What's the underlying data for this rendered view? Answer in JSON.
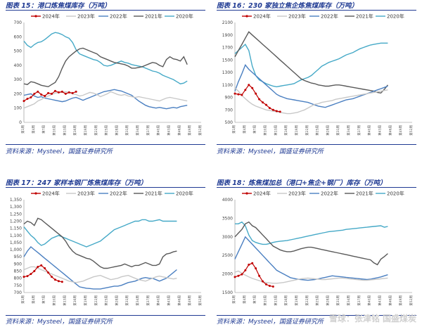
{
  "colors": {
    "y2024": "#c00000",
    "y2023": "#c8c8c8",
    "y2022": "#4a7fc1",
    "y2021": "#595959",
    "y2020": "#45a9c7",
    "title": "#1f3a93"
  },
  "watermark": "雪球：张津铭 国盛煤炭",
  "chart_data": [
    {
      "type": "line",
      "title": "图表 15：港口炼焦煤库存（万吨）",
      "source": "资料来源：Mysteel，国盛证券研究所",
      "ylim": [
        0,
        700
      ],
      "yticks": [
        "0",
        "100",
        "200",
        "300",
        "400",
        "500",
        "600",
        "700"
      ],
      "legend": [
        "2024年",
        "2023年",
        "2022年",
        "2021年",
        "2020年"
      ],
      "series": [
        {
          "name": "2024年",
          "values": [
            150,
            165,
            175,
            200,
            215,
            195,
            185,
            205,
            200,
            220,
            210,
            215,
            200,
            210,
            205,
            215
          ]
        },
        {
          "name": "2023年",
          "values": [
            100,
            110,
            120,
            130,
            150,
            160,
            175,
            185,
            195,
            205,
            210,
            212,
            215,
            210,
            200,
            195,
            185,
            190,
            200,
            210,
            205,
            195,
            180,
            190,
            200,
            215,
            205,
            195,
            190,
            195,
            185,
            180,
            175,
            180,
            175,
            170,
            165,
            160,
            155,
            150,
            160,
            170,
            175,
            170,
            165,
            160,
            155,
            150
          ]
        },
        {
          "name": "2022年",
          "values": [
            190,
            195,
            200,
            185,
            175,
            180,
            170,
            165,
            160,
            155,
            150,
            145,
            150,
            160,
            170,
            175,
            165,
            155,
            165,
            175,
            185,
            195,
            205,
            215,
            220,
            225,
            230,
            225,
            220,
            210,
            200,
            190,
            170,
            150,
            135,
            120,
            110,
            105,
            100,
            105,
            100,
            95,
            100,
            105,
            100,
            110,
            115,
            120
          ]
        },
        {
          "name": "2021年",
          "values": [
            270,
            265,
            285,
            280,
            270,
            260,
            255,
            250,
            265,
            280,
            320,
            380,
            430,
            460,
            480,
            500,
            515,
            520,
            510,
            500,
            490,
            480,
            460,
            450,
            440,
            430,
            420,
            415,
            410,
            405,
            395,
            380,
            380,
            385,
            390,
            400,
            410,
            420,
            415,
            400,
            390,
            440,
            460,
            445,
            440,
            430,
            460,
            405
          ]
        },
        {
          "name": "2020年",
          "values": [
            570,
            540,
            525,
            545,
            560,
            565,
            580,
            600,
            620,
            630,
            625,
            615,
            600,
            590,
            560,
            510,
            480,
            470,
            460,
            450,
            440,
            435,
            420,
            400,
            395,
            400,
            410,
            420,
            430,
            420,
            415,
            405,
            400,
            395,
            390,
            380,
            370,
            360,
            355,
            345,
            330,
            320,
            310,
            300,
            285,
            270,
            275,
            290
          ]
        }
      ]
    },
    {
      "type": "line",
      "title": "图表 16：230 家独立焦企炼焦煤库存（万吨）",
      "source": "资料来源：Mysteel，国盛证券研究所",
      "ylim": [
        500,
        2100
      ],
      "yticks": [
        "500",
        "700",
        "900",
        "1100",
        "1300",
        "1500",
        "1700",
        "1900",
        "2100"
      ],
      "legend": [
        "2024年",
        "2023年",
        "2022年",
        "2021年",
        "2020年"
      ],
      "series": [
        {
          "name": "2024年",
          "values": [
            960,
            950,
            940,
            1020,
            1100,
            1050,
            960,
            870,
            820,
            780,
            730,
            700,
            680,
            670
          ]
        },
        {
          "name": "2023年",
          "values": [
            1050,
            1000,
            930,
            880,
            830,
            790,
            760,
            740,
            720,
            700,
            690,
            680,
            670,
            660,
            650,
            640,
            640,
            650,
            660,
            680,
            700,
            730,
            760,
            790,
            800,
            820,
            830,
            840,
            850,
            870,
            880,
            890,
            900,
            910,
            920,
            930,
            940,
            950,
            960,
            970,
            980,
            990,
            1000,
            1010,
            1020
          ]
        },
        {
          "name": "2022年",
          "values": [
            1000,
            1150,
            1280,
            1420,
            1350,
            1300,
            1250,
            1200,
            1150,
            1100,
            1050,
            1000,
            950,
            920,
            900,
            880,
            870,
            860,
            850,
            840,
            830,
            820,
            800,
            780,
            760,
            750,
            740,
            760,
            780,
            800,
            820,
            840,
            860,
            870,
            880,
            900,
            920,
            940,
            960,
            980,
            1000,
            1020,
            1040,
            1060,
            1080
          ]
        },
        {
          "name": "2021年",
          "values": [
            1550,
            1650,
            1750,
            1850,
            1950,
            1900,
            1850,
            1800,
            1750,
            1700,
            1650,
            1600,
            1550,
            1500,
            1450,
            1400,
            1350,
            1300,
            1250,
            1200,
            1170,
            1150,
            1130,
            1120,
            1100,
            1090,
            1080,
            1080,
            1090,
            1100,
            1100,
            1090,
            1080,
            1070,
            1060,
            1050,
            1040,
            1030,
            1020,
            1010,
            1000,
            980,
            970,
            1030,
            1100
          ]
        },
        {
          "name": "2020年",
          "values": [
            1600,
            1650,
            1700,
            1750,
            1650,
            1400,
            1250,
            1180,
            1150,
            1120,
            1100,
            1080,
            1070,
            1080,
            1090,
            1100,
            1110,
            1120,
            1150,
            1180,
            1200,
            1220,
            1250,
            1300,
            1350,
            1400,
            1430,
            1460,
            1480,
            1500,
            1520,
            1550,
            1580,
            1600,
            1620,
            1650,
            1680,
            1700,
            1720,
            1740,
            1750,
            1760,
            1770,
            1770,
            1770
          ]
        }
      ]
    },
    {
      "type": "line",
      "title": "图表 17：247 家样本钢厂炼焦煤库存（万吨）",
      "source": "资料来源：Mysteel，国盛证券研究所",
      "ylim": [
        700,
        1350
      ],
      "yticks": [
        "700",
        "750",
        "800",
        "850",
        "900",
        "950",
        "1,000",
        "1,050",
        "1,100",
        "1,150",
        "1,200",
        "1,250",
        "1,300",
        "1,350"
      ],
      "legend": [
        "2024年",
        "2023年",
        "2022年",
        "2021年",
        "2020年"
      ],
      "series": [
        {
          "name": "2024年",
          "values": [
            810,
            815,
            830,
            850,
            880,
            890,
            870,
            840,
            810,
            790,
            780,
            775
          ]
        },
        {
          "name": "2023年",
          "values": [
            860,
            870,
            880,
            880,
            870,
            860,
            850,
            840,
            830,
            820,
            810,
            800,
            790,
            780,
            775,
            770,
            775,
            780,
            790,
            800,
            810,
            815,
            820,
            810,
            800,
            790,
            795,
            800,
            810,
            815,
            820,
            810,
            800,
            790,
            785,
            780,
            790,
            800,
            810,
            815,
            810,
            805,
            800,
            795,
            800
          ]
        },
        {
          "name": "2022年",
          "values": [
            950,
            990,
            1020,
            1000,
            980,
            960,
            940,
            920,
            900,
            880,
            860,
            840,
            820,
            800,
            780,
            760,
            740,
            735,
            730,
            728,
            725,
            725,
            725,
            730,
            735,
            740,
            745,
            745,
            750,
            760,
            770,
            775,
            780,
            790,
            800,
            805,
            800,
            800,
            790,
            780,
            790,
            800,
            820,
            840,
            860
          ]
        },
        {
          "name": "2021年",
          "values": [
            1180,
            1200,
            1190,
            1170,
            1220,
            1210,
            1190,
            1170,
            1150,
            1130,
            1110,
            1090,
            1060,
            1020,
            990,
            970,
            960,
            950,
            940,
            935,
            920,
            900,
            880,
            870,
            870,
            875,
            880,
            885,
            890,
            900,
            890,
            880,
            890,
            890,
            900,
            910,
            900,
            890,
            890,
            900,
            950,
            970,
            975,
            985,
            990
          ]
        },
        {
          "name": "2020年",
          "values": [
            1160,
            1130,
            1100,
            1080,
            1050,
            1030,
            1040,
            1060,
            1080,
            1090,
            1100,
            1090,
            1080,
            1070,
            1060,
            1050,
            1040,
            1030,
            1020,
            1030,
            1040,
            1050,
            1060,
            1080,
            1100,
            1120,
            1140,
            1150,
            1160,
            1170,
            1180,
            1190,
            1200,
            1200,
            1210,
            1210,
            1200,
            1200,
            1205,
            1210,
            1200,
            1200,
            1200,
            1200,
            1200
          ]
        }
      ]
    },
    {
      "type": "line",
      "title": "图表 18：炼焦煤加总（港口+焦企+钢厂）库存（万吨）",
      "source": "资料来源：Mysteel，国盛证券研究所",
      "ylim": [
        1500,
        4000
      ],
      "yticks": [
        "1500",
        "2000",
        "2500",
        "3000",
        "3500",
        "4000"
      ],
      "legend": [
        "2024年",
        "2023年",
        "2022年",
        "2021年",
        "2020年"
      ],
      "series": [
        {
          "name": "2024年",
          "values": [
            1920,
            1950,
            1990,
            2100,
            2250,
            2290,
            2150,
            1950,
            1800,
            1720,
            1680,
            1660
          ]
        },
        {
          "name": "2023年",
          "values": [
            2050,
            2080,
            2020,
            1970,
            1920,
            1880,
            1850,
            1820,
            1790,
            1770,
            1760,
            1750,
            1750,
            1760,
            1770,
            1790,
            1810,
            1830,
            1850,
            1870,
            1880,
            1890,
            1880,
            1870,
            1860,
            1850,
            1850,
            1860,
            1870,
            1880,
            1890,
            1890,
            1880,
            1870,
            1860,
            1850,
            1840,
            1830,
            1830,
            1840,
            1850,
            1860,
            1870,
            1880,
            1890
          ]
        },
        {
          "name": "2022年",
          "values": [
            2400,
            2600,
            2800,
            3000,
            2900,
            2800,
            2700,
            2600,
            2500,
            2400,
            2300,
            2200,
            2100,
            2050,
            2000,
            1950,
            1900,
            1880,
            1860,
            1850,
            1840,
            1830,
            1840,
            1850,
            1870,
            1890,
            1910,
            1930,
            1950,
            1940,
            1930,
            1920,
            1910,
            1900,
            1890,
            1880,
            1870,
            1860,
            1850,
            1860,
            1880,
            1900,
            1920,
            1950,
            1980
          ]
        },
        {
          "name": "2021年",
          "values": [
            3000,
            3100,
            3200,
            3350,
            3400,
            3300,
            3250,
            3150,
            3050,
            2950,
            2850,
            2750,
            2700,
            2650,
            2620,
            2600,
            2600,
            2620,
            2650,
            2680,
            2700,
            2720,
            2720,
            2700,
            2680,
            2660,
            2640,
            2620,
            2600,
            2580,
            2560,
            2540,
            2520,
            2500,
            2480,
            2460,
            2440,
            2420,
            2400,
            2380,
            2300,
            2250,
            2400,
            2470,
            2550
          ]
        },
        {
          "name": "2020年",
          "values": [
            3350,
            3350,
            3400,
            3300,
            3050,
            2900,
            2850,
            2820,
            2800,
            2800,
            2820,
            2850,
            2870,
            2880,
            2890,
            2900,
            2920,
            2940,
            2960,
            2980,
            3000,
            3020,
            3040,
            3060,
            3080,
            3100,
            3120,
            3140,
            3150,
            3160,
            3170,
            3180,
            3200,
            3210,
            3220,
            3230,
            3240,
            3250,
            3260,
            3270,
            3280,
            3290,
            3300,
            3260,
            3280
          ]
        }
      ]
    }
  ]
}
